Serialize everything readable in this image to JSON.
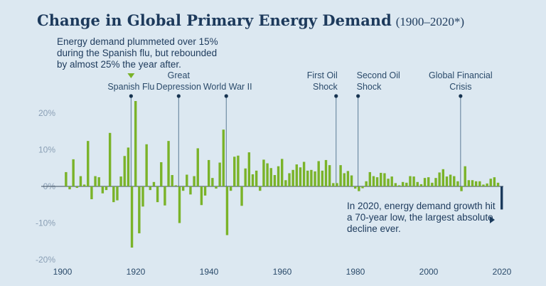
{
  "title": "Change in Global Primary Energy Demand",
  "subtitle": "(1900–2020*)",
  "colors": {
    "bar": "#7ab329",
    "highlight": "#1a3a5c",
    "text": "#1d3a5c",
    "background": "#dce8f1"
  },
  "annotations": {
    "spanish_flu_note": [
      "Energy demand plummeted over 15%",
      "during the Spanish flu, but rebounded",
      "by almost 25% the year after."
    ],
    "covid_note": [
      "In 2020, energy demand growth hit",
      "a 70-year low, the largest absolute",
      "decline ever."
    ]
  },
  "events": [
    {
      "year": 1919,
      "label": [
        "Spanish Flu"
      ]
    },
    {
      "year": 1932,
      "label": [
        "Great",
        "Depression"
      ]
    },
    {
      "year": 1945,
      "label": [
        "World War II"
      ]
    },
    {
      "year": 1975,
      "label": [
        "First Oil",
        "Shock"
      ]
    },
    {
      "year": 1981,
      "label": [
        "Second Oil",
        "Shock"
      ]
    },
    {
      "year": 2009,
      "label": [
        "Global Financial",
        "Crisis"
      ]
    }
  ],
  "chart_data": {
    "type": "bar",
    "title": "Change in Global Primary Energy Demand (1900–2020*)",
    "xlabel": "",
    "ylabel": "",
    "xlim": [
      1900,
      2020
    ],
    "ylim": [
      -20,
      20
    ],
    "x_ticks": [
      "1900",
      "1920",
      "1940",
      "1960",
      "1980",
      "2000",
      "2020"
    ],
    "y_ticks": [
      "20%",
      "10%",
      "0%",
      "-10%",
      "-20%"
    ],
    "grid": false,
    "highlight_year": 2020,
    "start_year": 1901,
    "values": [
      3.9,
      -0.8,
      7.4,
      -0.4,
      2.8,
      0.5,
      12.4,
      -3.5,
      2.8,
      2.5,
      -1.9,
      -1.0,
      14.6,
      -4.3,
      -3.8,
      2.7,
      8.3,
      10.6,
      -16.7,
      23.3,
      -12.8,
      -5.5,
      11.5,
      -1.0,
      1.2,
      -4.3,
      6.6,
      -5.2,
      12.4,
      3.1,
      0.3,
      -10.0,
      -1.2,
      3.2,
      -2.2,
      2.8,
      10.4,
      -5.1,
      -2.5,
      7.2,
      2.3,
      -0.6,
      6.5,
      15.5,
      -13.3,
      -1.2,
      8.1,
      8.4,
      -5.3,
      4.9,
      9.3,
      3.3,
      4.3,
      -1.2,
      7.3,
      6.3,
      5.0,
      3.1,
      5.5,
      7.5,
      1.7,
      3.6,
      4.5,
      6.0,
      5.2,
      6.7,
      4.3,
      4.5,
      4.1,
      6.9,
      4.3,
      7.2,
      5.8,
      0.9,
      0.9,
      5.8,
      3.6,
      4.2,
      3.0,
      -0.6,
      -1.3,
      -0.5,
      1.4,
      3.9,
      2.8,
      2.5,
      3.7,
      3.6,
      2.1,
      2.7,
      0.9,
      0.3,
      1.2,
      1.0,
      2.8,
      2.7,
      1.2,
      0.6,
      2.3,
      2.5,
      1.0,
      2.3,
      3.8,
      4.7,
      2.7,
      3.2,
      2.8,
      1.4,
      -1.3,
      5.5,
      1.7,
      1.7,
      1.4,
      1.4,
      0.5,
      0.8,
      2.1,
      2.5,
      1.0,
      -6.3
    ]
  }
}
